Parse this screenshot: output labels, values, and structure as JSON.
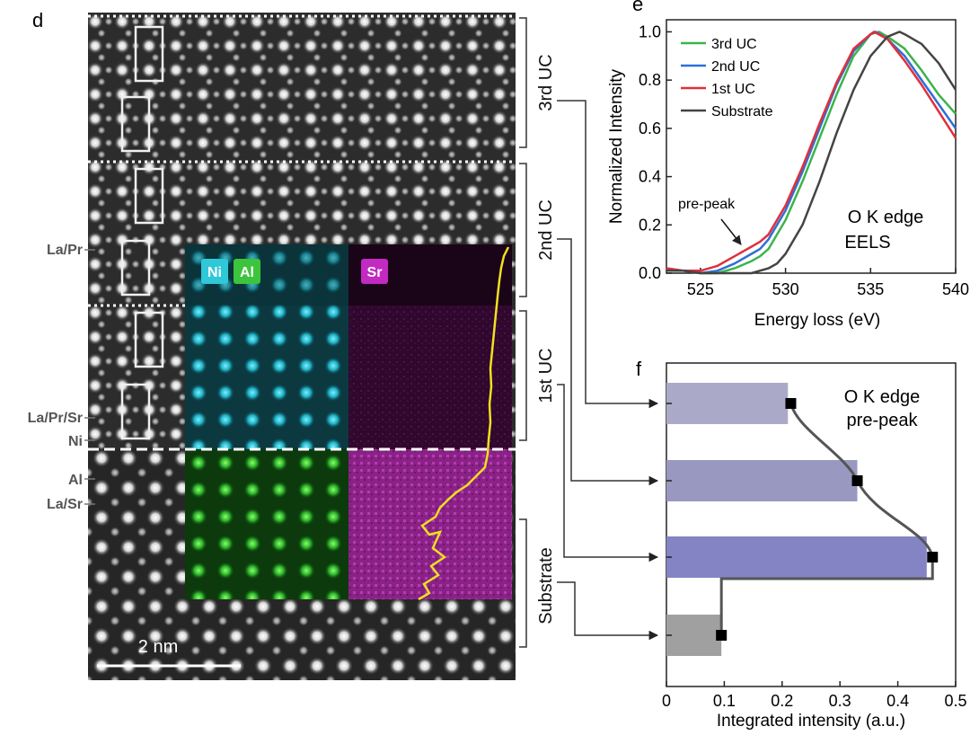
{
  "panel_d": {
    "letter": "d",
    "uc_labels": [
      "3rd UC",
      "2nd UC",
      "1st UC",
      "Substrate"
    ],
    "atom_labels": [
      "La/Pr",
      "La/Pr/Sr",
      "Ni",
      "Al",
      "La/Sr"
    ],
    "map_labels": [
      "Ni",
      "Al",
      "Sr"
    ],
    "scale_bar": "2 nm",
    "colors": {
      "ni": "#2ec8d8",
      "al": "#3cc43c",
      "sr": "#c22ac2",
      "profile": "#f0e020"
    }
  },
  "chart_data": [
    {
      "type": "line",
      "letter": "e",
      "xlabel": "Energy loss (eV)",
      "ylabel": "Normalized Intensity",
      "xlim": [
        523,
        540
      ],
      "ylim": [
        0,
        1.05
      ],
      "xticks": [
        525,
        530,
        535,
        540
      ],
      "yticks": [
        0.0,
        0.2,
        0.4,
        0.6,
        0.8,
        1.0
      ],
      "ytick_labels": [
        "0.0",
        "0.2",
        "0.4",
        "0.6",
        "0.8",
        "1.0"
      ],
      "annotations": [
        "pre-peak",
        "O K edge",
        "EELS"
      ],
      "legend_position": "top-left",
      "series": [
        {
          "name": "3rd UC",
          "color": "#3cb44a",
          "x": [
            523,
            524,
            525,
            526,
            527,
            528,
            528.5,
            529,
            530,
            531,
            532,
            533,
            534,
            535,
            535.5,
            536,
            537,
            538,
            539,
            540
          ],
          "y": [
            0.02,
            0.01,
            0.0,
            0.0,
            0.02,
            0.05,
            0.07,
            0.1,
            0.22,
            0.38,
            0.56,
            0.74,
            0.9,
            0.99,
            1.0,
            0.98,
            0.93,
            0.84,
            0.74,
            0.66
          ]
        },
        {
          "name": "2nd UC",
          "color": "#2f6fd6",
          "x": [
            523,
            524,
            525,
            526,
            527,
            528,
            528.5,
            529,
            530,
            531,
            532,
            533,
            534,
            535,
            535.3,
            536,
            537,
            538,
            539,
            540
          ],
          "y": [
            0.02,
            0.01,
            0.0,
            0.01,
            0.04,
            0.08,
            0.1,
            0.14,
            0.26,
            0.42,
            0.6,
            0.78,
            0.92,
            0.99,
            1.0,
            0.97,
            0.9,
            0.8,
            0.7,
            0.6
          ]
        },
        {
          "name": "1st UC",
          "color": "#e0303a",
          "x": [
            523,
            524,
            525,
            526,
            527,
            528,
            528.5,
            529,
            530,
            531,
            532,
            533,
            534,
            535,
            535.2,
            536,
            537,
            538,
            539,
            540
          ],
          "y": [
            0.02,
            0.01,
            0.01,
            0.03,
            0.07,
            0.11,
            0.13,
            0.16,
            0.28,
            0.44,
            0.62,
            0.79,
            0.93,
            0.99,
            1.0,
            0.97,
            0.88,
            0.78,
            0.67,
            0.56
          ]
        },
        {
          "name": "Substrate",
          "color": "#444444",
          "x": [
            523,
            524,
            525,
            526,
            527,
            528,
            529,
            529.5,
            530,
            531,
            532,
            533,
            534,
            535,
            536,
            536.7,
            537,
            538,
            539,
            540
          ],
          "y": [
            0.01,
            0.01,
            0.0,
            0.0,
            0.0,
            0.0,
            0.02,
            0.04,
            0.08,
            0.2,
            0.38,
            0.58,
            0.76,
            0.9,
            0.98,
            1.0,
            0.99,
            0.95,
            0.87,
            0.76
          ]
        }
      ]
    },
    {
      "type": "bar",
      "letter": "f",
      "orientation": "horizontal",
      "xlabel": "Integrated intensity (a.u.)",
      "xlim": [
        0,
        0.5
      ],
      "xticks": [
        0,
        0.1,
        0.2,
        0.3,
        0.4,
        0.5
      ],
      "xtick_labels": [
        "0",
        "0.1",
        "0.2",
        "0.3",
        "0.4",
        "0.5"
      ],
      "annotations": [
        "O K edge",
        "pre-peak"
      ],
      "categories": [
        "3rd UC",
        "2nd UC",
        "1st UC",
        "Substrate"
      ],
      "values": [
        0.21,
        0.33,
        0.45,
        0.095
      ],
      "points": [
        0.215,
        0.33,
        0.46,
        0.095
      ],
      "bar_colors": [
        "#aaaac8",
        "#9898c0",
        "#8484c4",
        "#a0a0a0"
      ]
    }
  ]
}
